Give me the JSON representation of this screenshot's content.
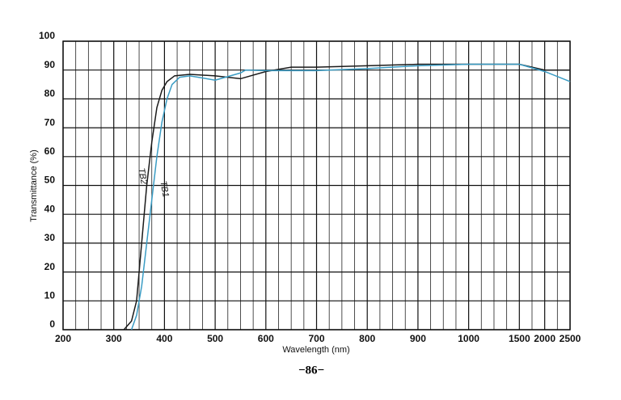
{
  "chart_data": {
    "type": "line",
    "x_label": "Wavelength (nm)",
    "y_label": "Transmittance (%)",
    "xticks": [
      200,
      300,
      400,
      500,
      600,
      700,
      800,
      900,
      1000,
      1500,
      2000,
      2500
    ],
    "xlim": [
      200,
      2500
    ],
    "yticks": [
      0,
      10,
      20,
      30,
      40,
      50,
      60,
      70,
      80,
      90,
      100
    ],
    "ylim": [
      0,
      100
    ],
    "grid": true,
    "series": [
      {
        "name": "TB2",
        "color": "#1a1a1a",
        "x": [
          320,
          335,
          345,
          355,
          365,
          375,
          385,
          395,
          405,
          420,
          450,
          500,
          550,
          600,
          650,
          700,
          800,
          900,
          1000,
          1500,
          2000,
          2500
        ],
        "values": [
          0,
          3,
          10,
          30,
          50,
          65,
          77,
          83,
          86,
          88,
          88.5,
          88,
          87,
          89.5,
          91,
          91,
          91.5,
          92,
          92,
          92,
          90,
          90
        ]
      },
      {
        "name": "TB1",
        "color": "#3a9cc4",
        "x": [
          335,
          345,
          355,
          365,
          375,
          385,
          395,
          405,
          415,
          430,
          450,
          500,
          550,
          560,
          600,
          700,
          800,
          900,
          1000,
          1500,
          2000,
          2500
        ],
        "values": [
          0,
          5,
          15,
          30,
          45,
          60,
          72,
          80,
          85,
          87.5,
          88,
          86.5,
          89,
          90,
          89.8,
          89.8,
          90.5,
          91.5,
          92,
          92,
          89.5,
          86
        ]
      }
    ],
    "footer": "−86−"
  }
}
